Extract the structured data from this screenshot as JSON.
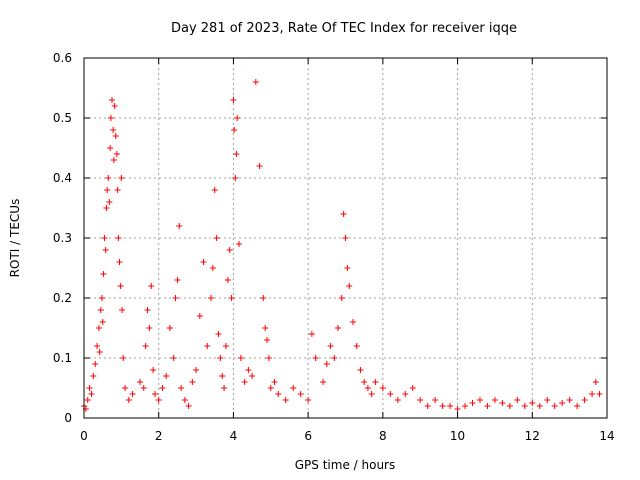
{
  "chart_data": {
    "type": "scatter",
    "title": "Day 281 of 2023, Rate Of TEC Index for receiver iqqe",
    "xlabel": "GPS time / hours",
    "ylabel": "ROTI / TECUs",
    "xlim": [
      0,
      14
    ],
    "ylim": [
      0,
      0.6
    ],
    "xticks": [
      0,
      2,
      4,
      6,
      8,
      10,
      12,
      14
    ],
    "yticks": [
      0,
      0.1,
      0.2,
      0.3,
      0.4,
      0.5,
      0.6
    ],
    "xtick_labels": [
      "0",
      "2",
      "4",
      "6",
      "8",
      "10",
      "12",
      "14"
    ],
    "ytick_labels": [
      "0",
      "0.1",
      "0.2",
      "0.3",
      "0.4",
      "0.5",
      "0.6"
    ],
    "grid": true,
    "marker": "+",
    "color": "#ff0000",
    "series": [
      {
        "x": [
          0.0,
          0.05,
          0.1,
          0.15,
          0.2,
          0.25,
          0.3,
          0.35,
          0.4,
          0.42,
          0.45,
          0.48,
          0.5,
          0.52,
          0.55,
          0.58,
          0.6,
          0.62,
          0.65,
          0.68,
          0.7,
          0.72,
          0.75,
          0.78,
          0.8,
          0.82,
          0.85,
          0.88,
          0.9,
          0.92,
          0.95,
          0.98,
          1.0,
          1.02,
          1.05,
          1.1,
          1.2,
          1.3,
          1.5,
          1.6,
          1.65,
          1.7,
          1.75,
          1.8,
          1.85,
          1.9,
          2.0,
          2.1,
          2.2,
          2.3,
          2.4,
          2.45,
          2.5,
          2.55,
          2.6,
          2.7,
          2.8,
          2.9,
          3.0,
          3.1,
          3.2,
          3.3,
          3.4,
          3.45,
          3.5,
          3.55,
          3.6,
          3.65,
          3.7,
          3.75,
          3.8,
          3.85,
          3.9,
          3.95,
          4.0,
          4.02,
          4.05,
          4.08,
          4.1,
          4.15,
          4.2,
          4.3,
          4.4,
          4.5,
          4.6,
          4.7,
          4.8,
          4.85,
          4.9,
          4.95,
          5.0,
          5.1,
          5.2,
          5.4,
          5.6,
          5.8,
          6.0,
          6.1,
          6.2,
          6.4,
          6.5,
          6.6,
          6.7,
          6.8,
          6.9,
          6.95,
          7.0,
          7.05,
          7.1,
          7.2,
          7.3,
          7.4,
          7.5,
          7.6,
          7.7,
          7.8,
          8.0,
          8.2,
          8.4,
          8.6,
          8.8,
          9.0,
          9.2,
          9.4,
          9.6,
          9.8,
          10.0,
          10.2,
          10.4,
          10.6,
          10.8,
          11.0,
          11.2,
          11.4,
          11.6,
          11.8,
          12.0,
          12.2,
          12.4,
          12.6,
          12.8,
          13.0,
          13.2,
          13.4,
          13.6,
          13.7,
          13.8
        ],
        "y": [
          0.02,
          0.015,
          0.03,
          0.05,
          0.04,
          0.07,
          0.09,
          0.12,
          0.15,
          0.11,
          0.18,
          0.2,
          0.16,
          0.24,
          0.3,
          0.28,
          0.35,
          0.38,
          0.4,
          0.36,
          0.45,
          0.5,
          0.53,
          0.48,
          0.43,
          0.52,
          0.47,
          0.44,
          0.38,
          0.3,
          0.26,
          0.22,
          0.4,
          0.18,
          0.1,
          0.05,
          0.03,
          0.04,
          0.06,
          0.05,
          0.12,
          0.18,
          0.15,
          0.22,
          0.08,
          0.04,
          0.03,
          0.05,
          0.07,
          0.15,
          0.1,
          0.2,
          0.23,
          0.32,
          0.05,
          0.03,
          0.02,
          0.06,
          0.08,
          0.17,
          0.26,
          0.12,
          0.2,
          0.25,
          0.38,
          0.3,
          0.14,
          0.1,
          0.07,
          0.05,
          0.12,
          0.23,
          0.28,
          0.2,
          0.53,
          0.48,
          0.4,
          0.44,
          0.5,
          0.29,
          0.1,
          0.06,
          0.08,
          0.07,
          0.56,
          0.42,
          0.2,
          0.15,
          0.13,
          0.1,
          0.05,
          0.06,
          0.04,
          0.03,
          0.05,
          0.04,
          0.03,
          0.14,
          0.1,
          0.06,
          0.09,
          0.12,
          0.1,
          0.15,
          0.2,
          0.34,
          0.3,
          0.25,
          0.22,
          0.16,
          0.12,
          0.08,
          0.06,
          0.05,
          0.04,
          0.06,
          0.05,
          0.04,
          0.03,
          0.04,
          0.05,
          0.03,
          0.02,
          0.03,
          0.02,
          0.02,
          0.015,
          0.02,
          0.025,
          0.03,
          0.02,
          0.03,
          0.025,
          0.02,
          0.03,
          0.02,
          0.025,
          0.02,
          0.03,
          0.02,
          0.025,
          0.03,
          0.02,
          0.03,
          0.04,
          0.06,
          0.04
        ]
      }
    ]
  }
}
